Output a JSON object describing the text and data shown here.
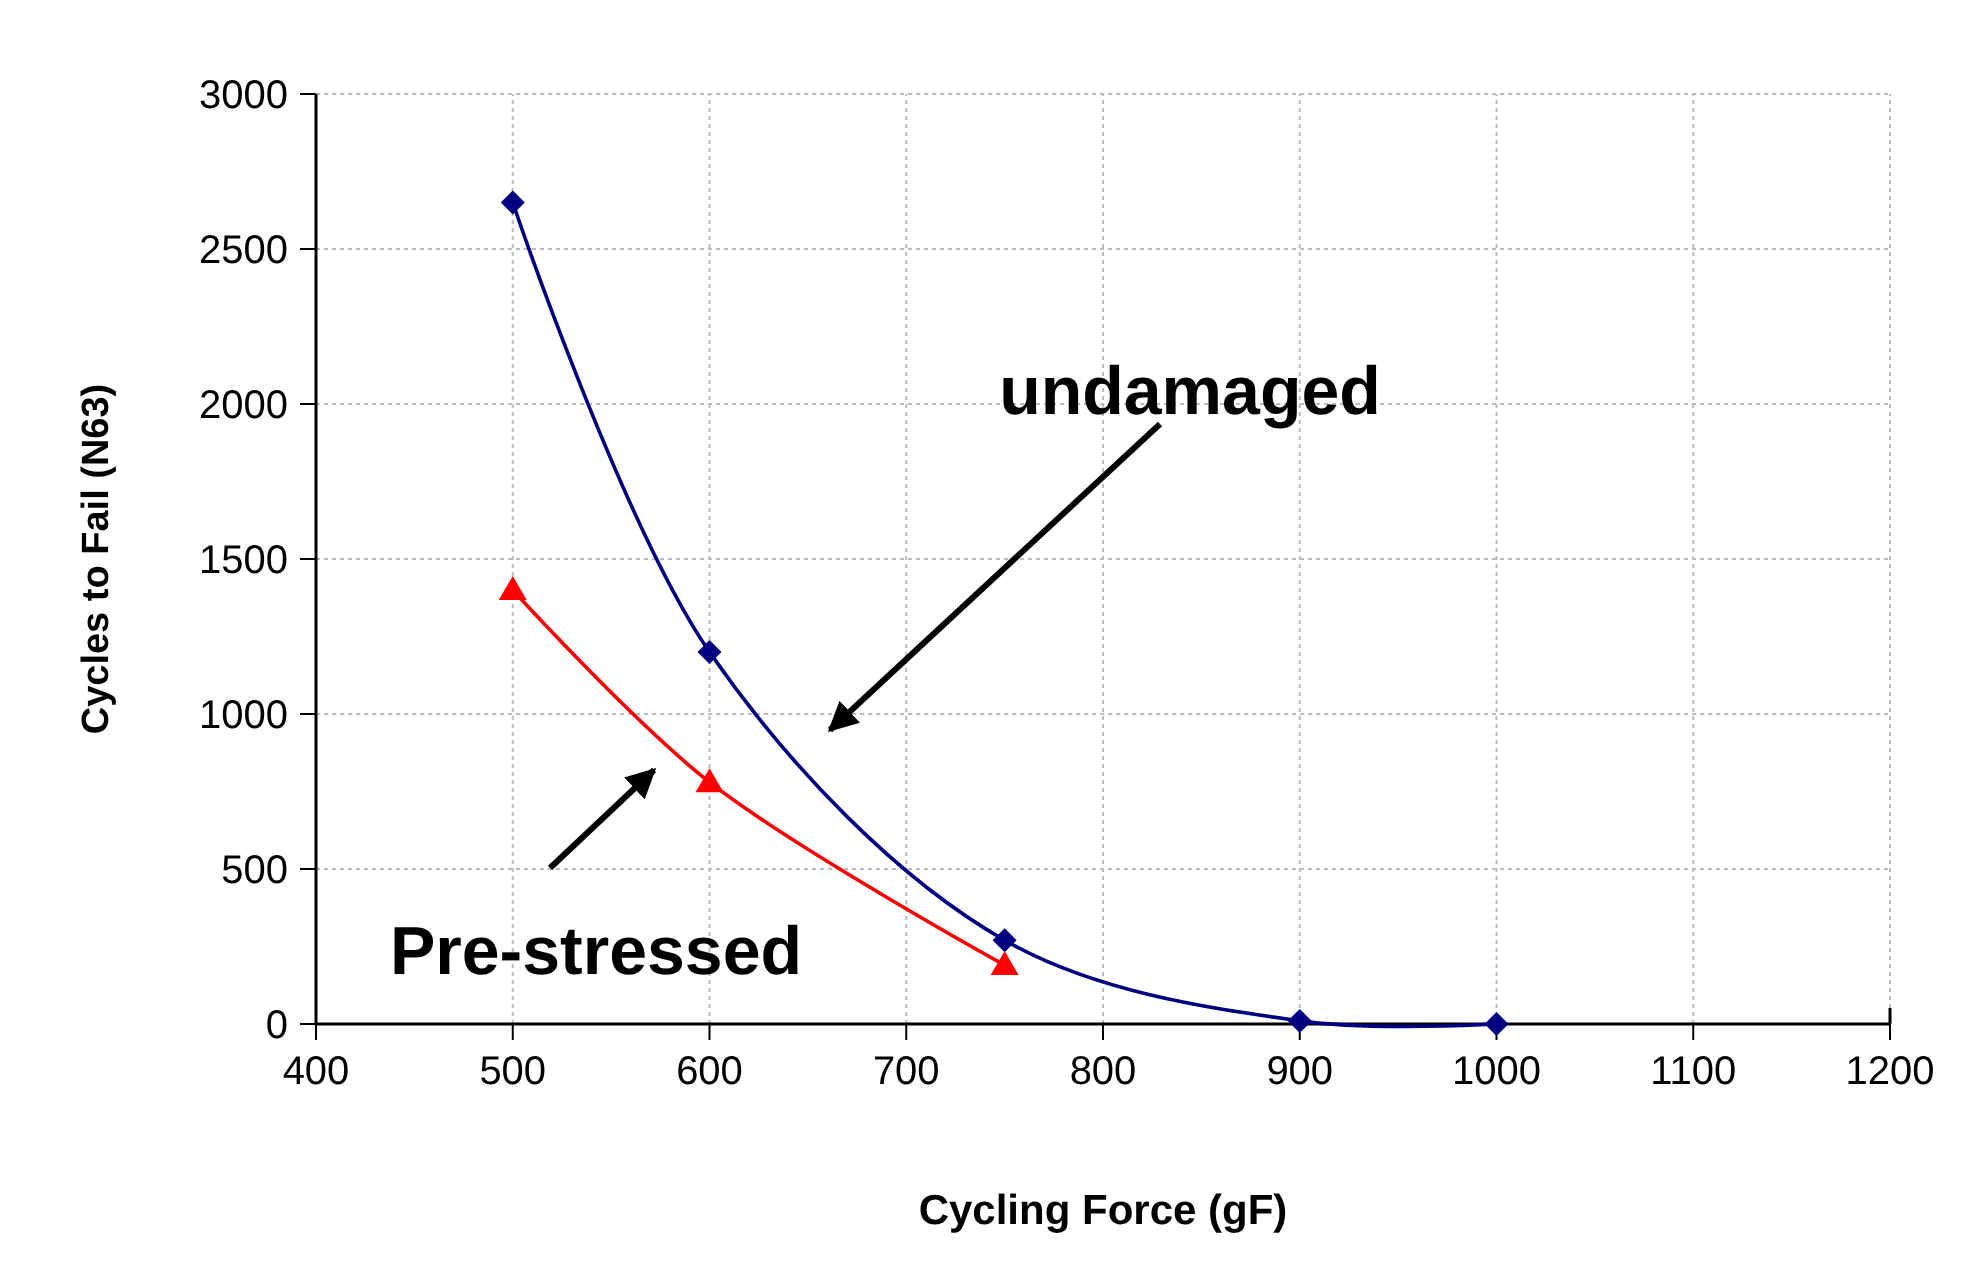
{
  "chart_data": {
    "type": "line",
    "xlabel": "Cycling Force (gF)",
    "ylabel": "Cycles to Fail (N63)",
    "x": [
      500,
      600,
      750,
      900,
      1000
    ],
    "series": [
      {
        "color": "#000080",
        "marker": "diamond",
        "values": [
          2650,
          1200,
          270,
          10,
          0
        ]
      },
      {
        "color": "#ff0000",
        "marker": "triangle",
        "values": [
          1400,
          780,
          190,
          null,
          null
        ]
      }
    ],
    "xlim": [
      400,
      1200
    ],
    "xticks": [
      400,
      500,
      600,
      700,
      800,
      900,
      1000,
      1100,
      1200
    ],
    "ylim": [
      0,
      3000
    ],
    "yticks": [
      0,
      500,
      1000,
      1500,
      2000,
      2500,
      3000
    ],
    "annotations": [
      "undamaged",
      "Pre-stressed"
    ],
    "grid": true,
    "line_style": "solid"
  }
}
